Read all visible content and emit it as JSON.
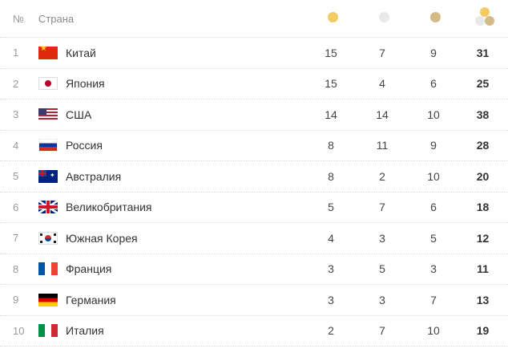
{
  "header": {
    "num_label": "№",
    "country_label": "Страна"
  },
  "colors": {
    "gold": "#f2cc63",
    "silver": "#e9e9e9",
    "bronze": "#d3bb86"
  },
  "rows": [
    {
      "rank": "1",
      "country": "Китай",
      "flag": "china-flag-icon",
      "gold": "15",
      "silver": "7",
      "bronze": "9",
      "total": "31"
    },
    {
      "rank": "2",
      "country": "Япония",
      "flag": "japan-flag-icon",
      "gold": "15",
      "silver": "4",
      "bronze": "6",
      "total": "25"
    },
    {
      "rank": "3",
      "country": "США",
      "flag": "usa-flag-icon",
      "gold": "14",
      "silver": "14",
      "bronze": "10",
      "total": "38"
    },
    {
      "rank": "4",
      "country": "Россия",
      "flag": "russia-flag-icon",
      "gold": "8",
      "silver": "11",
      "bronze": "9",
      "total": "28"
    },
    {
      "rank": "5",
      "country": "Австралия",
      "flag": "australia-flag-icon",
      "gold": "8",
      "silver": "2",
      "bronze": "10",
      "total": "20"
    },
    {
      "rank": "6",
      "country": "Великобритания",
      "flag": "uk-flag-icon",
      "gold": "5",
      "silver": "7",
      "bronze": "6",
      "total": "18"
    },
    {
      "rank": "7",
      "country": "Южная Корея",
      "flag": "south-korea-flag-icon",
      "gold": "4",
      "silver": "3",
      "bronze": "5",
      "total": "12"
    },
    {
      "rank": "8",
      "country": "Франция",
      "flag": "france-flag-icon",
      "gold": "3",
      "silver": "5",
      "bronze": "3",
      "total": "11"
    },
    {
      "rank": "9",
      "country": "Германия",
      "flag": "germany-flag-icon",
      "gold": "3",
      "silver": "3",
      "bronze": "7",
      "total": "13"
    },
    {
      "rank": "10",
      "country": "Италия",
      "flag": "italy-flag-icon",
      "gold": "2",
      "silver": "7",
      "bronze": "10",
      "total": "19"
    }
  ]
}
